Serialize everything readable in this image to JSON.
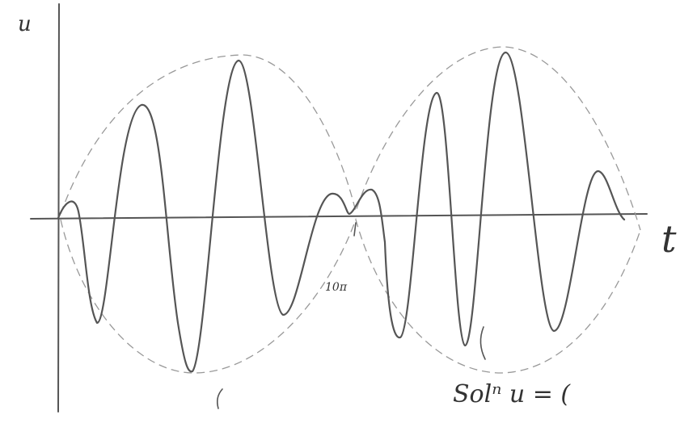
{
  "labels": {
    "y_axis": "u",
    "x_axis": "t",
    "tick": "10π",
    "solution": "Solⁿ u = ("
  }
}
